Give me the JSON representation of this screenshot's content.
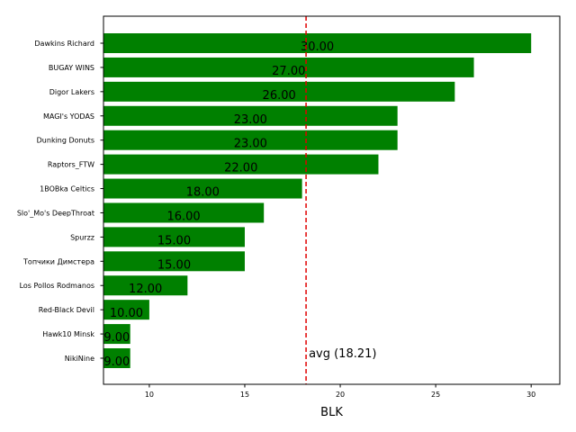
{
  "chart_data": {
    "type": "bar",
    "orientation": "horizontal",
    "categories": [
      "Dawkins Richard",
      "BUGAY WINS",
      "Digor Lakers",
      "MAGI's YODAS",
      "Dunking Donuts",
      "Raptors_FTW",
      "1BOBka Celtics",
      "Slo'_Mo's DeepThroat",
      "Spurzz",
      "Топчики Димстера",
      "Los Pollos Rodmanos",
      "Red-Black Devil",
      "Hawk10 Minsk",
      "NikiNine"
    ],
    "values": [
      30,
      27,
      26,
      23,
      23,
      22,
      18,
      16,
      15,
      15,
      12,
      10,
      9,
      9
    ],
    "data_labels": [
      "30.00",
      "27.00",
      "26.00",
      "23.00",
      "23.00",
      "22.00",
      "18.00",
      "16.00",
      "15.00",
      "15.00",
      "12.00",
      "10.00",
      "9.00",
      "9.00"
    ],
    "xlabel": "BLK",
    "xlim": [
      7.6,
      31.5
    ],
    "xticks": [
      10,
      15,
      20,
      25,
      30
    ],
    "bar_color": "#008000",
    "average": {
      "value": 18.21,
      "label": "avg (18.21)",
      "color": "#e00000",
      "style": "dashed"
    },
    "grid": false
  }
}
